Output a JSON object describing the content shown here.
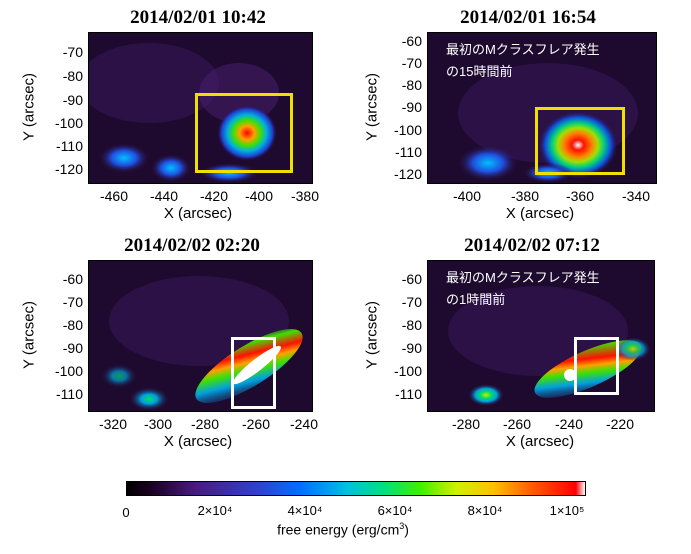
{
  "panels": [
    {
      "title": "2014/02/01 10:42",
      "yticks": [
        "-70",
        "-80",
        "-90",
        "-100",
        "-110",
        "-120"
      ],
      "xticks": [
        "-460",
        "-440",
        "-420",
        "-400",
        "-380"
      ],
      "ylabel": "Y (arcsec)",
      "xlabel": "X (arcsec)",
      "box_color": "#f0e000",
      "note": ""
    },
    {
      "title": "2014/02/01 16:54",
      "yticks": [
        "-60",
        "-70",
        "-80",
        "-90",
        "-100",
        "-110",
        "-120"
      ],
      "xticks": [
        "-400",
        "-380",
        "-360",
        "-340"
      ],
      "ylabel": "Y (arcsec)",
      "xlabel": "X (arcsec)",
      "box_color": "#f0e000",
      "note_line1": "最初のMクラスフレア発生",
      "note_line2": "の15時間前"
    },
    {
      "title": "2014/02/02 02:20",
      "yticks": [
        "-60",
        "-70",
        "-80",
        "-90",
        "-100",
        "-110"
      ],
      "xticks": [
        "-320",
        "-300",
        "-280",
        "-260",
        "-240"
      ],
      "ylabel": "Y (arcsec)",
      "xlabel": "X (arcsec)",
      "box_color": "#ffffff",
      "note": ""
    },
    {
      "title": "2014/02/02 07:12",
      "yticks": [
        "-60",
        "-70",
        "-80",
        "-90",
        "-100",
        "-110"
      ],
      "xticks": [
        "-280",
        "-260",
        "-240",
        "-220"
      ],
      "ylabel": "Y (arcsec)",
      "xlabel": "X (arcsec)",
      "box_color": "#ffffff",
      "note_line1": "最初のMクラスフレア発生",
      "note_line2": "の1時間前"
    }
  ],
  "colorbar": {
    "ticks": [
      "0",
      "2×10⁴",
      "4×10⁴",
      "6×10⁴",
      "8×10⁴",
      "1×10⁵"
    ],
    "label_main": "free energy (erg/cm",
    "label_sup": "3",
    "label_end": ")"
  }
}
